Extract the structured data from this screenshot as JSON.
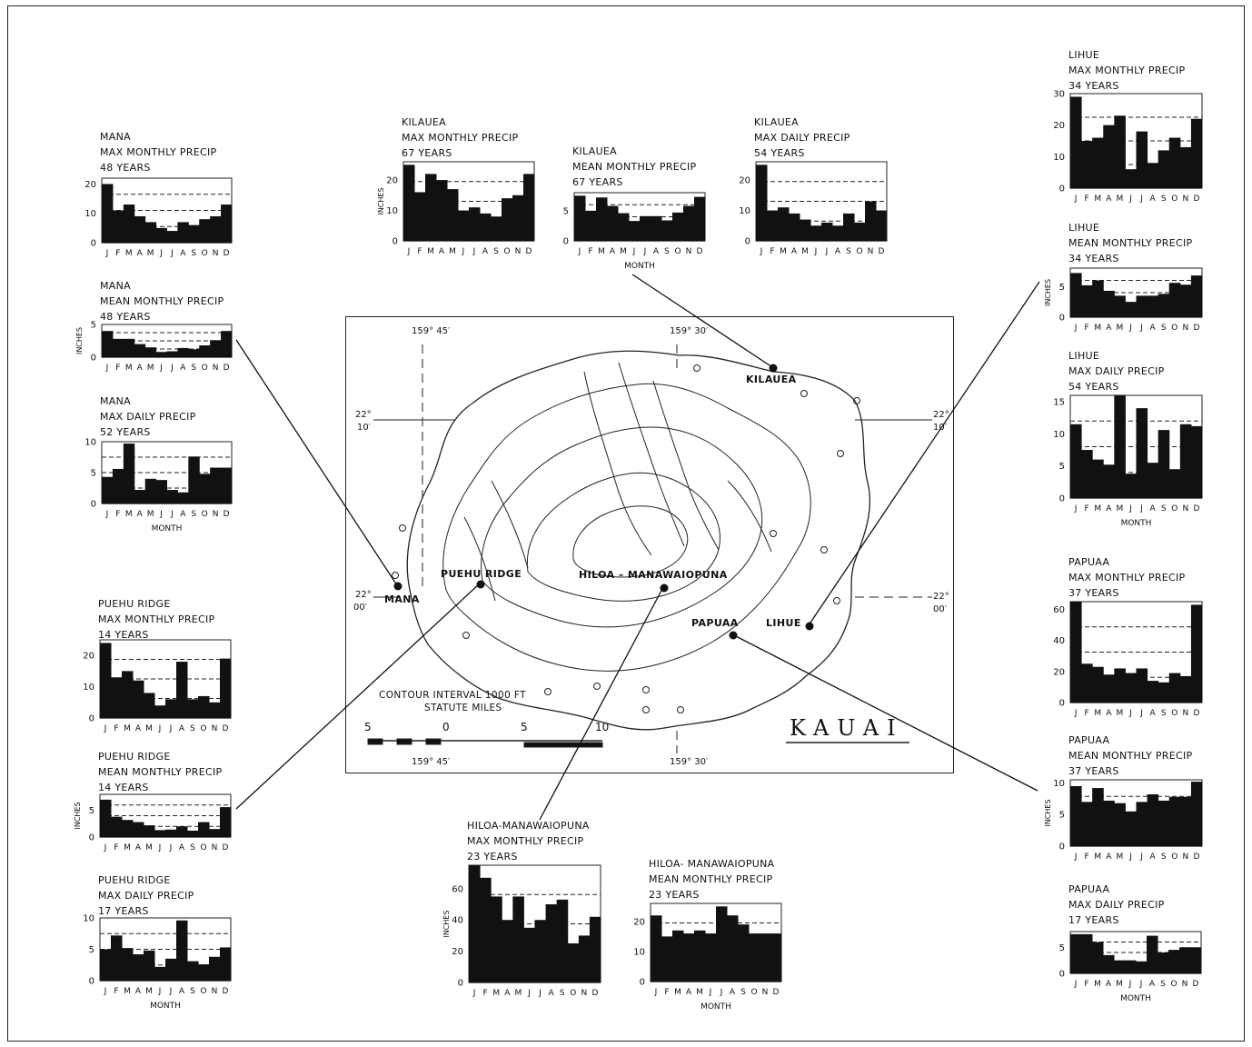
{
  "map": {
    "island_label": "KAUAI",
    "contour_label": "CONTOUR INTERVAL 1000 FT",
    "scale_label": "STATUTE MILES",
    "scale_ticks": [
      "5",
      "0",
      "5",
      "10"
    ],
    "lon_label_left": "159° 45′",
    "lon_label_right": "159° 30′",
    "lat_label_north": [
      "22°",
      "10′"
    ],
    "lat_label_south": [
      "22°",
      "00′"
    ],
    "stations": {
      "mana": "MANA",
      "puehu": "PUEHU RIDGE",
      "hiloa": "HILOA – MANAWAIOPUNA",
      "papuaa": "PAPUAA",
      "lihue": "LIHUE",
      "kilauea": "KILAUEA"
    }
  },
  "chart_data": [
    {
      "id": "mana_max_monthly",
      "type": "bar",
      "title_lines": [
        "MANA",
        "MAX MONTHLY PRECIP",
        "48 YEARS"
      ],
      "categories": [
        "J",
        "F",
        "M",
        "A",
        "M",
        "J",
        "J",
        "A",
        "S",
        "O",
        "N",
        "D"
      ],
      "values": [
        20,
        11,
        13,
        9,
        7,
        5,
        4,
        7,
        6,
        8,
        9,
        13
      ],
      "ylim": [
        0,
        22
      ],
      "yticks": [
        0,
        10,
        20
      ],
      "ylabel": "",
      "xlabel": ""
    },
    {
      "id": "mana_mean_monthly",
      "type": "bar",
      "title_lines": [
        "MANA",
        "MEAN MONTHLY PRECIP",
        "48 YEARS"
      ],
      "categories": [
        "J",
        "F",
        "M",
        "A",
        "M",
        "J",
        "J",
        "A",
        "S",
        "O",
        "N",
        "D"
      ],
      "values": [
        4.0,
        2.8,
        2.8,
        2.0,
        1.5,
        0.8,
        0.9,
        1.4,
        1.2,
        1.8,
        2.6,
        4.0
      ],
      "ylim": [
        0,
        5
      ],
      "yticks": [
        0,
        5
      ],
      "ylabel": "INCHES",
      "xlabel": ""
    },
    {
      "id": "mana_max_daily",
      "type": "bar",
      "title_lines": [
        "MANA",
        "MAX DAILY PRECIP",
        "52 YEARS"
      ],
      "categories": [
        "J",
        "F",
        "M",
        "A",
        "M",
        "J",
        "J",
        "A",
        "S",
        "O",
        "N",
        "D"
      ],
      "values": [
        4.3,
        5.6,
        9.7,
        2.2,
        4.0,
        3.8,
        2.2,
        1.8,
        7.6,
        4.8,
        5.8,
        5.8
      ],
      "ylim": [
        0,
        10
      ],
      "yticks": [
        0,
        5,
        10
      ],
      "ylabel": "",
      "xlabel": "MONTH"
    },
    {
      "id": "puehu_max_monthly",
      "type": "bar",
      "title_lines": [
        "PUEHU RIDGE",
        "MAX MONTHLY PRECIP",
        "14 YEARS"
      ],
      "categories": [
        "J",
        "F",
        "M",
        "A",
        "M",
        "J",
        "J",
        "A",
        "S",
        "O",
        "N",
        "D"
      ],
      "values": [
        24,
        13,
        15,
        12,
        8,
        4,
        6,
        18,
        6,
        7,
        5,
        19
      ],
      "ylim": [
        0,
        25
      ],
      "yticks": [
        0,
        10,
        20
      ],
      "ylabel": "",
      "xlabel": ""
    },
    {
      "id": "puehu_mean_monthly",
      "type": "bar",
      "title_lines": [
        "PUEHU RIDGE",
        "MEAN MONTHLY PRECIP",
        "14 YEARS"
      ],
      "categories": [
        "J",
        "F",
        "M",
        "A",
        "M",
        "J",
        "J",
        "A",
        "S",
        "O",
        "N",
        "D"
      ],
      "values": [
        7.0,
        3.8,
        3.2,
        2.8,
        2.2,
        1.3,
        1.4,
        2.0,
        1.2,
        2.8,
        1.5,
        5.6
      ],
      "ylim": [
        0,
        8
      ],
      "yticks": [
        0,
        5
      ],
      "ylabel": "INCHES",
      "xlabel": ""
    },
    {
      "id": "puehu_max_daily",
      "type": "bar",
      "title_lines": [
        "PUEHU RIDGE",
        "MAX DAILY PRECIP",
        "17 YEARS"
      ],
      "categories": [
        "J",
        "F",
        "M",
        "A",
        "M",
        "J",
        "J",
        "A",
        "S",
        "O",
        "N",
        "D"
      ],
      "values": [
        5.0,
        7.2,
        5.2,
        4.2,
        4.8,
        2.2,
        3.5,
        9.6,
        3.1,
        2.6,
        3.8,
        5.3
      ],
      "ylim": [
        0,
        10
      ],
      "yticks": [
        0,
        5,
        10
      ],
      "ylabel": "",
      "xlabel": "MONTH"
    },
    {
      "id": "kilauea_max_monthly",
      "type": "bar",
      "title_lines": [
        "KILAUEA",
        "MAX MONTHLY PRECIP",
        "67 YEARS"
      ],
      "categories": [
        "J",
        "F",
        "M",
        "A",
        "M",
        "J",
        "J",
        "A",
        "S",
        "O",
        "N",
        "D"
      ],
      "values": [
        25,
        16,
        22,
        20,
        17,
        10,
        11,
        9,
        8,
        14,
        15,
        22
      ],
      "ylim": [
        0,
        26
      ],
      "yticks": [
        0,
        10,
        20
      ],
      "ylabel": "INCHES",
      "xlabel": ""
    },
    {
      "id": "kilauea_mean_monthly",
      "type": "bar",
      "title_lines": [
        "KILAUEA",
        "MEAN MONTHLY PRECIP",
        "67 YEARS"
      ],
      "categories": [
        "J",
        "F",
        "M",
        "A",
        "M",
        "J",
        "J",
        "A",
        "S",
        "O",
        "N",
        "D"
      ],
      "values": [
        7.5,
        5.0,
        7.2,
        5.8,
        4.6,
        3.3,
        4.1,
        4.1,
        3.4,
        4.7,
        5.8,
        7.3
      ],
      "ylim": [
        0,
        8
      ],
      "yticks": [
        0,
        5
      ],
      "ylabel": "",
      "xlabel": "MONTH"
    },
    {
      "id": "kilauea_max_daily",
      "type": "bar",
      "title_lines": [
        "KILAUEA",
        "MAX DAILY PRECIP",
        "54 YEARS"
      ],
      "categories": [
        "J",
        "F",
        "M",
        "A",
        "M",
        "J",
        "J",
        "A",
        "S",
        "O",
        "N",
        "D"
      ],
      "values": [
        25,
        10,
        11,
        9,
        7,
        5,
        6,
        5,
        9,
        6,
        13,
        10
      ],
      "ylim": [
        0,
        26
      ],
      "yticks": [
        0,
        10,
        20
      ],
      "ylabel": "",
      "xlabel": ""
    },
    {
      "id": "lihue_max_monthly",
      "type": "bar",
      "title_lines": [
        "LIHUE",
        "MAX MONTHLY PRECIP",
        "34 YEARS"
      ],
      "categories": [
        "J",
        "F",
        "M",
        "A",
        "M",
        "J",
        "J",
        "A",
        "S",
        "O",
        "N",
        "D"
      ],
      "values": [
        29,
        15,
        16,
        20,
        23,
        6,
        18,
        8,
        12,
        16,
        13,
        22
      ],
      "ylim": [
        0,
        30
      ],
      "yticks": [
        0,
        10,
        20,
        30
      ],
      "ylabel": "",
      "xlabel": ""
    },
    {
      "id": "lihue_mean_monthly",
      "type": "bar",
      "title_lines": [
        "LIHUE",
        "MEAN MONTHLY PRECIP",
        "34 YEARS"
      ],
      "categories": [
        "J",
        "F",
        "M",
        "A",
        "M",
        "J",
        "J",
        "A",
        "S",
        "O",
        "N",
        "D"
      ],
      "values": [
        7.2,
        5.2,
        6.0,
        4.3,
        3.5,
        2.5,
        3.5,
        3.5,
        3.8,
        5.6,
        5.3,
        6.8
      ],
      "ylim": [
        0,
        8
      ],
      "yticks": [
        0,
        5
      ],
      "ylabel": "INCHES",
      "xlabel": ""
    },
    {
      "id": "lihue_max_daily",
      "type": "bar",
      "title_lines": [
        "LIHUE",
        "MAX DAILY PRECIP",
        "54 YEARS"
      ],
      "categories": [
        "J",
        "F",
        "M",
        "A",
        "M",
        "J",
        "J",
        "A",
        "S",
        "O",
        "N",
        "D"
      ],
      "values": [
        11.5,
        7.5,
        6.0,
        5.2,
        16.0,
        3.8,
        14.0,
        5.5,
        10.6,
        4.5,
        11.5,
        11.2
      ],
      "ylim": [
        0,
        16
      ],
      "yticks": [
        0,
        5,
        10,
        15
      ],
      "ylabel": "",
      "xlabel": "MONTH"
    },
    {
      "id": "papuaa_max_monthly",
      "type": "bar",
      "title_lines": [
        "PAPUAA",
        "MAX MONTHLY PRECIP",
        "37 YEARS"
      ],
      "categories": [
        "J",
        "F",
        "M",
        "A",
        "M",
        "J",
        "J",
        "A",
        "S",
        "O",
        "N",
        "D"
      ],
      "values": [
        65,
        25,
        23,
        18,
        22,
        19,
        22,
        14,
        13,
        19,
        17,
        63
      ],
      "ylim": [
        0,
        65
      ],
      "yticks": [
        0,
        20,
        40,
        60
      ],
      "ylabel": "",
      "xlabel": ""
    },
    {
      "id": "papuaa_mean_monthly",
      "type": "bar",
      "title_lines": [
        "PAPUAA",
        "MEAN MONTHLY PRECIP",
        "37 YEARS"
      ],
      "categories": [
        "J",
        "F",
        "M",
        "A",
        "M",
        "J",
        "J",
        "A",
        "S",
        "O",
        "N",
        "D"
      ],
      "values": [
        9.5,
        7.0,
        9.2,
        7.2,
        6.8,
        5.5,
        7.0,
        8.2,
        7.2,
        7.8,
        7.8,
        10.2
      ],
      "ylim": [
        0,
        10.5
      ],
      "yticks": [
        0,
        5,
        10
      ],
      "ylabel": "INCHES",
      "xlabel": ""
    },
    {
      "id": "papuaa_max_daily",
      "type": "bar",
      "title_lines": [
        "PAPUAA",
        "MAX DAILY PRECIP",
        "17 YEARS"
      ],
      "categories": [
        "J",
        "F",
        "M",
        "A",
        "M",
        "J",
        "J",
        "A",
        "S",
        "O",
        "N",
        "D"
      ],
      "values": [
        7.5,
        7.5,
        6.0,
        3.5,
        2.5,
        2.5,
        2.3,
        7.2,
        4.0,
        4.5,
        5.0,
        5.0
      ],
      "ylim": [
        0,
        8
      ],
      "yticks": [
        0,
        5
      ],
      "ylabel": "",
      "xlabel": "MONTH"
    },
    {
      "id": "hiloa_max_monthly",
      "type": "bar",
      "title_lines": [
        "HILOA-MANAWAIOPUNA",
        "MAX MONTHLY PRECIP",
        "23 YEARS"
      ],
      "categories": [
        "J",
        "F",
        "M",
        "A",
        "M",
        "J",
        "J",
        "A",
        "S",
        "O",
        "N",
        "D"
      ],
      "values": [
        75,
        67,
        55,
        40,
        55,
        35,
        40,
        50,
        53,
        25,
        30,
        42
      ],
      "ylim": [
        0,
        75
      ],
      "yticks": [
        0,
        20,
        40,
        60
      ],
      "ylabel": "INCHES",
      "xlabel": ""
    },
    {
      "id": "hiloa_mean_monthly",
      "type": "bar",
      "title_lines": [
        "HILOA- MANAWAIOPUNA",
        "MEAN MONTHLY PRECIP",
        "23 YEARS"
      ],
      "categories": [
        "J",
        "F",
        "M",
        "A",
        "M",
        "J",
        "J",
        "A",
        "S",
        "O",
        "N",
        "D"
      ],
      "values": [
        22,
        15,
        17,
        16,
        17,
        16,
        25,
        22,
        19,
        16,
        16,
        16
      ],
      "ylim": [
        0,
        26
      ],
      "yticks": [
        0,
        10,
        20
      ],
      "ylabel": "",
      "xlabel": "MONTH"
    }
  ]
}
